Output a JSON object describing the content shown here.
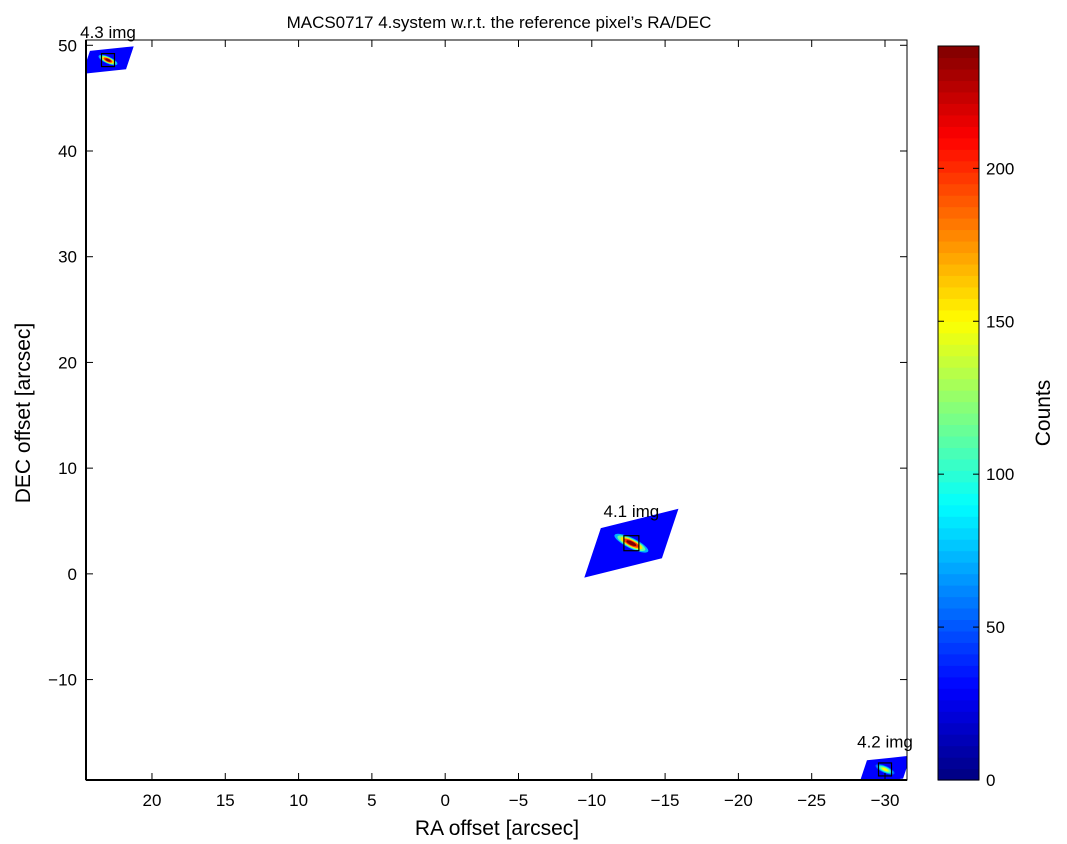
{
  "chart_data": {
    "type": "heatmap",
    "title": "MACS0717  4.system w.r.t. the reference pixel’s RA/DEC",
    "xlabel": "RA offset [arcsec]",
    "ylabel": "DEC offset [arcsec]",
    "xlim": [
      24.5,
      -31.5
    ],
    "ylim": [
      -19.5,
      50.5
    ],
    "x_direction": "reversed",
    "xticks": [
      20,
      15,
      10,
      5,
      0,
      -5,
      -10,
      -15,
      -20,
      -25,
      -30
    ],
    "xtick_labels": [
      "20",
      "15",
      "10",
      "5",
      "0",
      "−5",
      "−10",
      "−15",
      "−20",
      "−25",
      "−30"
    ],
    "yticks": [
      50,
      40,
      30,
      20,
      10,
      0,
      -10
    ],
    "ytick_labels": [
      "50",
      "40",
      "30",
      "20",
      "10",
      "0",
      "−10"
    ],
    "colorbar": {
      "label": "Counts",
      "colormap": "jet",
      "range": [
        0,
        240
      ],
      "ticks": [
        0,
        50,
        100,
        150,
        200
      ],
      "tick_labels": [
        "0",
        "50",
        "100",
        "150",
        "200"
      ]
    },
    "grid": false,
    "images": [
      {
        "label": "4.1 img",
        "center": [
          -12.7,
          2.9
        ],
        "peak_counts": 240,
        "background_counts": 30
      },
      {
        "label": "4.2 img",
        "center": [
          -30.0,
          -18.5
        ],
        "peak_counts": 150,
        "background_counts": 30
      },
      {
        "label": "4.3 img",
        "center": [
          23.0,
          48.6
        ],
        "peak_counts": 240,
        "background_counts": 30
      }
    ]
  }
}
